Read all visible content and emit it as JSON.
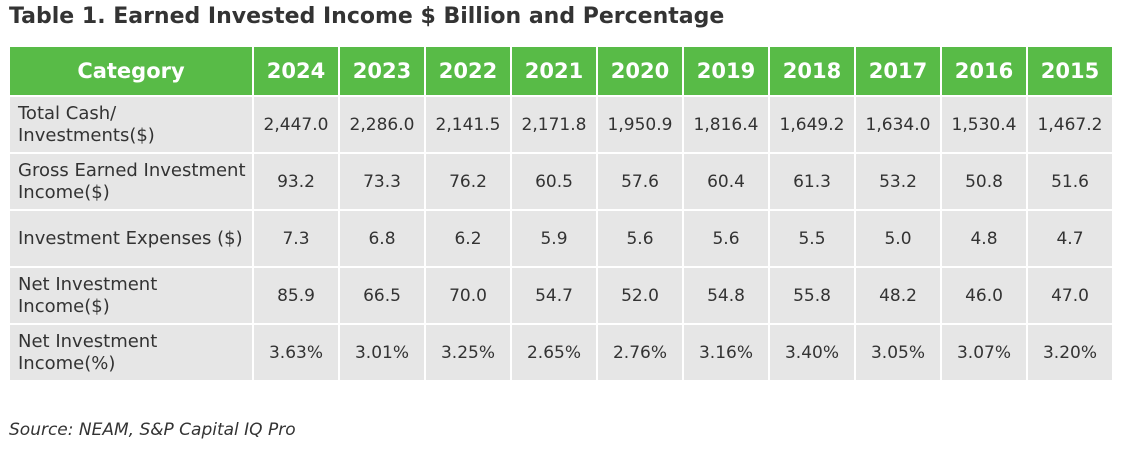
{
  "title": "Table 1. Earned Invested Income $ Billion and Percentage",
  "colors": {
    "header_bg": "#58bb47",
    "header_text": "#ffffff",
    "row_bg": "#e6e6e6",
    "text": "#333333"
  },
  "table": {
    "headers": [
      "Category",
      "2024",
      "2023",
      "2022",
      "2021",
      "2020",
      "2019",
      "2018",
      "2017",
      "2016",
      "2015"
    ],
    "rows": [
      {
        "label": "Total Cash/ Investments($)",
        "values": [
          "2,447.0",
          "2,286.0",
          "2,141.5",
          "2,171.8",
          "1,950.9",
          "1,816.4",
          "1,649.2",
          "1,634.0",
          "1,530.4",
          "1,467.2"
        ]
      },
      {
        "label": "Gross Earned Investment Income($)",
        "values": [
          "93.2",
          "73.3",
          "76.2",
          "60.5",
          "57.6",
          "60.4",
          "61.3",
          "53.2",
          "50.8",
          "51.6"
        ]
      },
      {
        "label": "Investment Expenses ($)",
        "values": [
          "7.3",
          "6.8",
          "6.2",
          "5.9",
          "5.6",
          "5.6",
          "5.5",
          "5.0",
          "4.8",
          "4.7"
        ]
      },
      {
        "label": "Net Investment Income($)",
        "values": [
          "85.9",
          "66.5",
          "70.0",
          "54.7",
          "52.0",
          "54.8",
          "55.8",
          "48.2",
          "46.0",
          "47.0"
        ]
      },
      {
        "label": "Net Investment Income(%)",
        "values": [
          "3.63%",
          "3.01%",
          "3.25%",
          "2.65%",
          "2.76%",
          "3.16%",
          "3.40%",
          "3.05%",
          "3.07%",
          "3.20%"
        ]
      }
    ]
  },
  "source": "Source: NEAM, S&P Capital IQ Pro"
}
